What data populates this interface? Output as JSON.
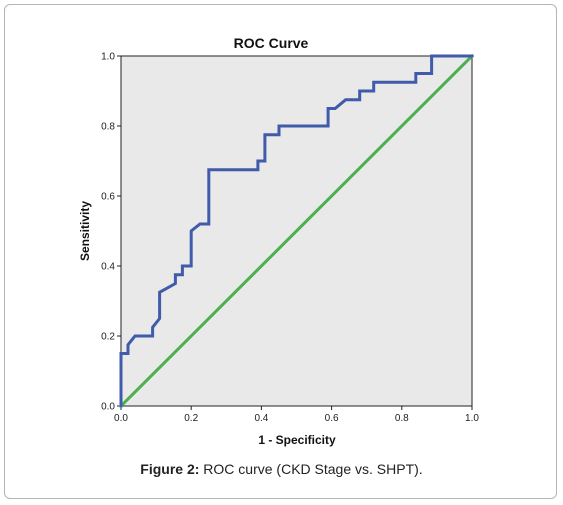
{
  "chart_data": {
    "type": "line",
    "title": "ROC Curve",
    "xlabel": "1 - Specificity",
    "ylabel": "Sensitivity",
    "xlim": [
      0,
      1
    ],
    "ylim": [
      0,
      1
    ],
    "x_ticks": [
      "0.0",
      "0.2",
      "0.4",
      "0.6",
      "0.8",
      "1.0"
    ],
    "y_ticks": [
      "0.0",
      "0.2",
      "0.4",
      "0.6",
      "0.8",
      "1.0"
    ],
    "grid": false,
    "background_color": "#e9e9e9",
    "series": [
      {
        "color": "#3f5ba9",
        "points": [
          [
            0.0,
            0.0
          ],
          [
            0.0,
            0.15
          ],
          [
            0.02,
            0.15
          ],
          [
            0.02,
            0.175
          ],
          [
            0.04,
            0.2
          ],
          [
            0.09,
            0.2
          ],
          [
            0.09,
            0.225
          ],
          [
            0.11,
            0.25
          ],
          [
            0.11,
            0.325
          ],
          [
            0.155,
            0.35
          ],
          [
            0.155,
            0.375
          ],
          [
            0.175,
            0.375
          ],
          [
            0.175,
            0.4
          ],
          [
            0.2,
            0.4
          ],
          [
            0.2,
            0.5
          ],
          [
            0.225,
            0.52
          ],
          [
            0.25,
            0.52
          ],
          [
            0.25,
            0.675
          ],
          [
            0.39,
            0.675
          ],
          [
            0.39,
            0.7
          ],
          [
            0.41,
            0.7
          ],
          [
            0.41,
            0.775
          ],
          [
            0.45,
            0.775
          ],
          [
            0.45,
            0.8
          ],
          [
            0.59,
            0.8
          ],
          [
            0.59,
            0.85
          ],
          [
            0.61,
            0.85
          ],
          [
            0.64,
            0.875
          ],
          [
            0.68,
            0.875
          ],
          [
            0.68,
            0.9
          ],
          [
            0.72,
            0.9
          ],
          [
            0.72,
            0.925
          ],
          [
            0.84,
            0.925
          ],
          [
            0.84,
            0.95
          ],
          [
            0.885,
            0.95
          ],
          [
            0.885,
            1.0
          ],
          [
            1.0,
            1.0
          ]
        ]
      },
      {
        "color": "#4caf50",
        "points": [
          [
            0.0,
            0.0
          ],
          [
            1.0,
            1.0
          ]
        ]
      }
    ]
  },
  "caption": {
    "label": "Figure 2:",
    "text": " ROC curve (CKD Stage vs. SHPT)."
  }
}
